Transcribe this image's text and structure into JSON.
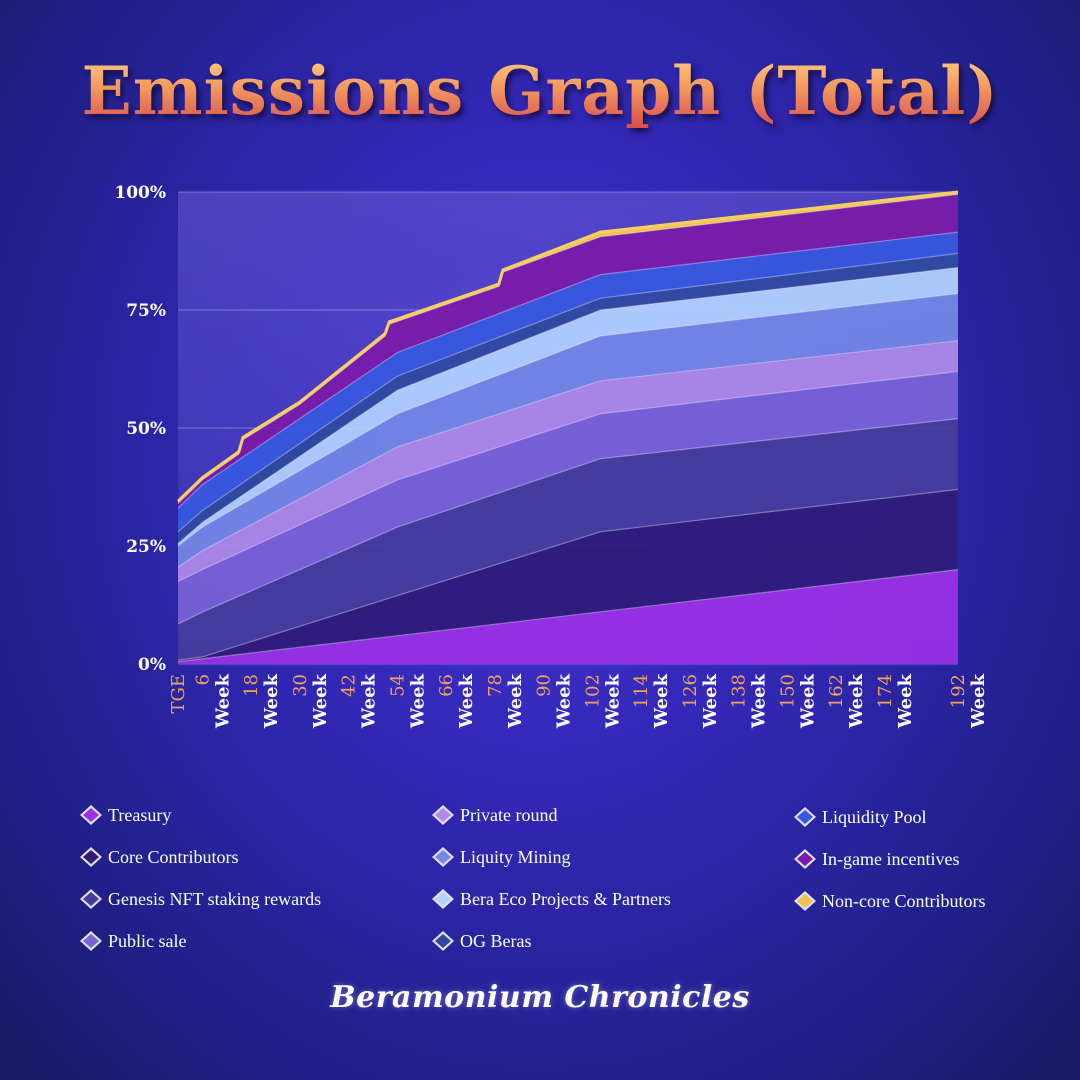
{
  "title": "Emissions Graph (Total)",
  "brand": "Beramonium Chronicles",
  "chart_data": {
    "type": "area",
    "stacked": true,
    "title": "Emissions Graph (Total)",
    "x_labels": [
      "TGE",
      "Week 6",
      "Week 18",
      "Week 30",
      "Week 42",
      "Week 54",
      "Week 66",
      "Week 78",
      "Week 90",
      "Week 102",
      "Week 114",
      "Week 126",
      "Week 138",
      "Week 150",
      "Week 162",
      "Week 174",
      "Week 192"
    ],
    "x_label_prefix": "Week",
    "x_values": [
      0,
      6,
      18,
      30,
      42,
      54,
      66,
      78,
      90,
      102,
      114,
      126,
      138,
      150,
      162,
      174,
      192
    ],
    "y_ticks": [
      "0%",
      "25%",
      "50%",
      "75%",
      "100%"
    ],
    "y_tick_values": [
      0,
      25,
      50,
      75,
      100
    ],
    "ylim": [
      0,
      100
    ],
    "xlim": [
      0,
      192
    ],
    "grid": true,
    "cumulative_top_boundaries": [
      {
        "name": "Treasury",
        "x": [
          0,
          192
        ],
        "y": [
          0.5,
          20
        ]
      },
      {
        "name": "Core Contributors",
        "x": [
          0,
          6,
          104,
          192
        ],
        "y": [
          0.8,
          1.5,
          28,
          37
        ]
      },
      {
        "name": "Genesis NFT staking rewards",
        "x": [
          0,
          6,
          54,
          104,
          192
        ],
        "y": [
          8.5,
          11,
          29,
          43.5,
          52
        ]
      },
      {
        "name": "Public sale",
        "x": [
          0,
          6,
          54,
          104,
          192
        ],
        "y": [
          17.5,
          20,
          39,
          53,
          62
        ]
      },
      {
        "name": "Private round",
        "x": [
          0,
          6,
          54,
          104,
          192
        ],
        "y": [
          20.5,
          24,
          46,
          60,
          68.5
        ]
      },
      {
        "name": "Liquity Mining",
        "x": [
          0,
          6,
          54,
          104,
          192
        ],
        "y": [
          25,
          29,
          53,
          69.5,
          78.5
        ]
      },
      {
        "name": "Bera Eco Projects & Partners",
        "x": [
          0,
          6,
          54,
          104,
          192
        ],
        "y": [
          25.5,
          30,
          58,
          75,
          84
        ]
      },
      {
        "name": "OG Beras",
        "x": [
          0,
          6,
          54,
          104,
          192
        ],
        "y": [
          28,
          32.5,
          61,
          77.5,
          87
        ]
      },
      {
        "name": "Liquidity Pool",
        "x": [
          0,
          6,
          54,
          104,
          192
        ],
        "y": [
          33,
          38,
          66,
          82.5,
          91.5
        ]
      },
      {
        "name": "In-game incentives",
        "x": [
          0,
          6,
          15,
          16,
          30,
          51,
          52,
          79,
          80,
          104,
          192
        ],
        "y": [
          34,
          39,
          44.5,
          47.5,
          55,
          69.5,
          72,
          80,
          83,
          90.5,
          99.5
        ]
      },
      {
        "name": "Non-core Contributors",
        "x": [
          0,
          6,
          15,
          16,
          30,
          51,
          52,
          79,
          80,
          104,
          192
        ],
        "y": [
          34.5,
          39.5,
          45,
          48,
          55.5,
          70,
          72.5,
          80.5,
          83.5,
          91.5,
          100
        ]
      }
    ],
    "legend": [
      {
        "label": "Treasury",
        "color": "#9b30e6"
      },
      {
        "label": "Core Contributors",
        "color": "#2f1a78"
      },
      {
        "label": "Genesis NFT staking rewards",
        "color": "#453c9c"
      },
      {
        "label": "Public sale",
        "color": "#7b62d8"
      },
      {
        "label": "Private round",
        "color": "#b08ae8"
      },
      {
        "label": "Liquity Mining",
        "color": "#7488e6"
      },
      {
        "label": "Bera Eco Projects & Partners",
        "color": "#b4d2ff"
      },
      {
        "label": "OG Beras",
        "color": "#2f4aa0"
      },
      {
        "label": "Liquidity Pool",
        "color": "#3658e0"
      },
      {
        "label": "In-game incentives",
        "color": "#7a1aa8"
      },
      {
        "label": "Non-core Contributors",
        "color": "#f2c14e"
      }
    ]
  }
}
